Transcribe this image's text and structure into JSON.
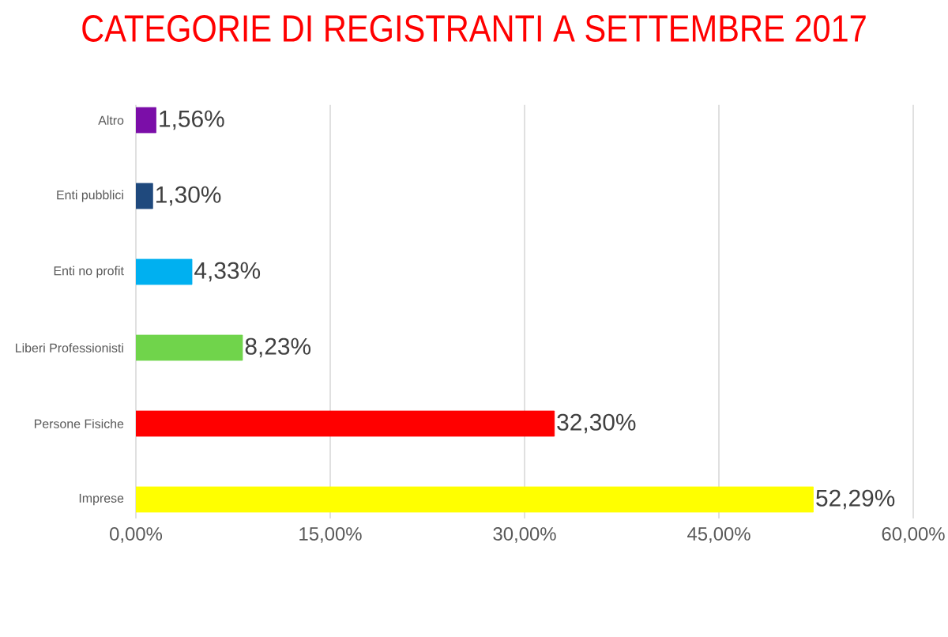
{
  "chart_data": {
    "type": "bar",
    "orientation": "horizontal",
    "title": "CATEGORIE DI REGISTRANTI A SETTEMBRE 2017",
    "categories": [
      "Altro",
      "Enti pubblici",
      "Enti no profit",
      "Liberi Professionisti",
      "Persone Fisiche",
      "Imprese"
    ],
    "values": [
      1.56,
      1.3,
      4.33,
      8.23,
      32.3,
      52.29
    ],
    "colors": [
      "#7b0ea8",
      "#1f497d",
      "#00b0f0",
      "#70d44b",
      "#ff0000",
      "#ffff00"
    ],
    "value_labels": [
      "1,56%",
      "1,30%",
      "4,33%",
      "8,23%",
      "32,30%",
      "52,29%"
    ],
    "xlim": [
      0,
      60
    ],
    "xticks": [
      {
        "value": 0,
        "label": "0,00%"
      },
      {
        "value": 15,
        "label": "15,00%"
      },
      {
        "value": 30,
        "label": "30,00%"
      },
      {
        "value": 45,
        "label": "45,00%"
      },
      {
        "value": 60,
        "label": "60,00%"
      }
    ],
    "grid": "x"
  }
}
